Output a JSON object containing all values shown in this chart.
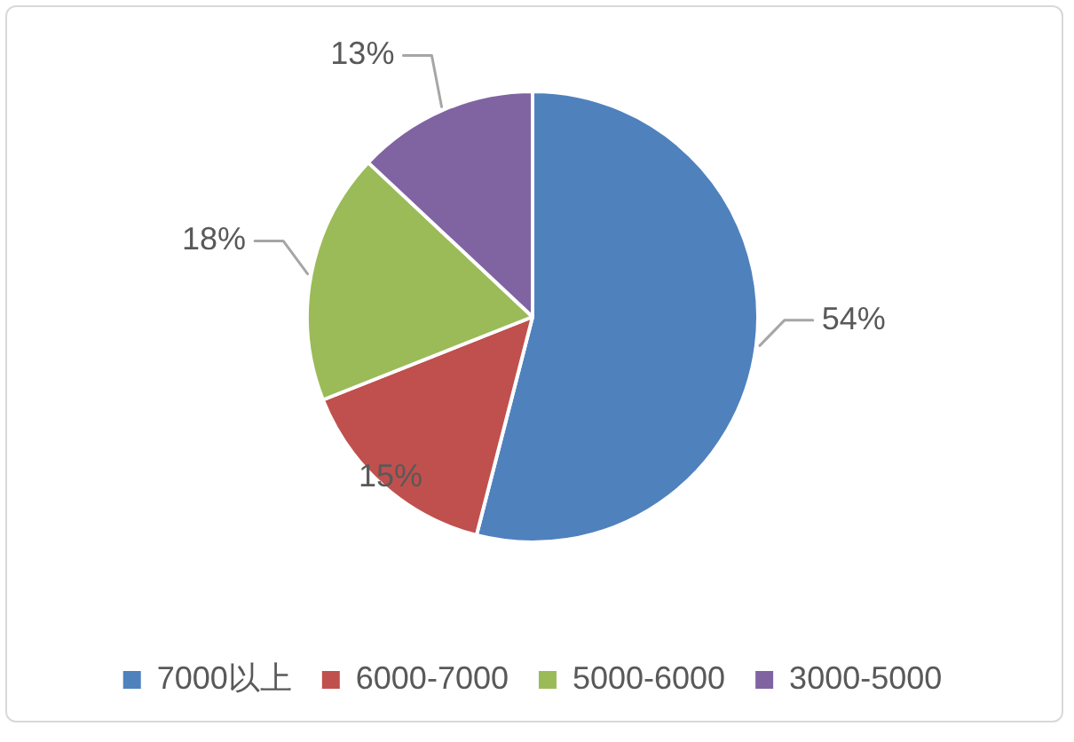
{
  "chart_data": {
    "type": "pie",
    "categories": [
      "7000以上",
      "6000-7000",
      "5000-6000",
      "3000-5000"
    ],
    "values": [
      54,
      15,
      18,
      13
    ],
    "colors": [
      "#4f81bd",
      "#c0504d",
      "#9bbb59",
      "#8064a2"
    ],
    "value_labels": [
      "54%",
      "15%",
      "18%",
      "13%"
    ],
    "legend": "bottom"
  }
}
